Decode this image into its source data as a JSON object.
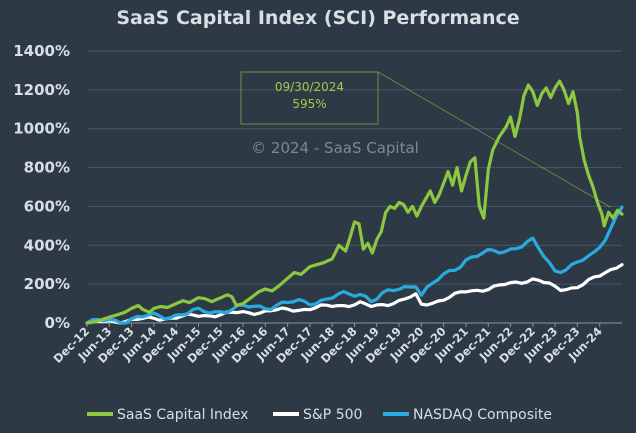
{
  "chart_data": {
    "type": "line",
    "title": "SaaS Capital Index (SCI) Performance",
    "xlabel": "",
    "ylabel": "",
    "ylim": [
      0,
      1400
    ],
    "yticks": [
      0,
      200,
      400,
      600,
      800,
      1000,
      1200,
      1400
    ],
    "ytick_labels": [
      "0%",
      "200%",
      "400%",
      "600%",
      "800%",
      "1000%",
      "1200%",
      "1400%"
    ],
    "x_tick_labels": [
      "Dec-12",
      "Jun-13",
      "Dec-13",
      "Jun-14",
      "Dec-14",
      "Jun-15",
      "Dec-15",
      "Jun-16",
      "Dec-16",
      "Jun-17",
      "Dec-17",
      "Jun-18",
      "Dec-18",
      "Jun-19",
      "Dec-19",
      "Jun-20",
      "Dec-20",
      "Jun-21",
      "Dec-21",
      "Jun-22",
      "Dec-22",
      "Jun-23",
      "Dec-23",
      "Jun-24"
    ],
    "x_range": [
      0,
      23.5
    ],
    "grid": true,
    "legend_position": "bottom",
    "watermark": "© 2024 - SaaS Capital",
    "annotation": {
      "date": "09/30/2024",
      "value": "595%",
      "point_x": 23.5,
      "point_y": 595
    },
    "series": [
      {
        "name": "SaaS Capital Index",
        "color": "#8dc63f",
        "points": [
          [
            0,
            0
          ],
          [
            0.3,
            5
          ],
          [
            0.6,
            15
          ],
          [
            1,
            30
          ],
          [
            1.3,
            40
          ],
          [
            1.7,
            55
          ],
          [
            2,
            75
          ],
          [
            2.3,
            90
          ],
          [
            2.5,
            70
          ],
          [
            2.8,
            55
          ],
          [
            3,
            75
          ],
          [
            3.3,
            85
          ],
          [
            3.6,
            80
          ],
          [
            4,
            100
          ],
          [
            4.3,
            115
          ],
          [
            4.6,
            105
          ],
          [
            5,
            130
          ],
          [
            5.3,
            125
          ],
          [
            5.6,
            110
          ],
          [
            6,
            130
          ],
          [
            6.3,
            145
          ],
          [
            6.5,
            135
          ],
          [
            6.7,
            90
          ],
          [
            7,
            100
          ],
          [
            7.3,
            125
          ],
          [
            7.7,
            160
          ],
          [
            8,
            175
          ],
          [
            8.3,
            165
          ],
          [
            8.6,
            190
          ],
          [
            9,
            230
          ],
          [
            9.3,
            260
          ],
          [
            9.6,
            250
          ],
          [
            10,
            290
          ],
          [
            10.3,
            300
          ],
          [
            10.6,
            310
          ],
          [
            11,
            330
          ],
          [
            11.3,
            400
          ],
          [
            11.6,
            370
          ],
          [
            11.8,
            440
          ],
          [
            12,
            520
          ],
          [
            12.2,
            510
          ],
          [
            12.4,
            380
          ],
          [
            12.6,
            410
          ],
          [
            12.8,
            360
          ],
          [
            13,
            430
          ],
          [
            13.2,
            470
          ],
          [
            13.4,
            570
          ],
          [
            13.6,
            600
          ],
          [
            13.8,
            590
          ],
          [
            14,
            620
          ],
          [
            14.2,
            610
          ],
          [
            14.4,
            570
          ],
          [
            14.6,
            600
          ],
          [
            14.8,
            550
          ],
          [
            15,
            600
          ],
          [
            15.2,
            640
          ],
          [
            15.4,
            680
          ],
          [
            15.6,
            620
          ],
          [
            15.8,
            660
          ],
          [
            16,
            720
          ],
          [
            16.2,
            780
          ],
          [
            16.4,
            710
          ],
          [
            16.6,
            800
          ],
          [
            16.8,
            680
          ],
          [
            17,
            760
          ],
          [
            17.2,
            830
          ],
          [
            17.4,
            850
          ],
          [
            17.6,
            600
          ],
          [
            17.8,
            540
          ],
          [
            18,
            790
          ],
          [
            18.2,
            890
          ],
          [
            18.5,
            960
          ],
          [
            18.8,
            1010
          ],
          [
            19,
            1060
          ],
          [
            19.2,
            960
          ],
          [
            19.4,
            1050
          ],
          [
            19.6,
            1170
          ],
          [
            19.8,
            1225
          ],
          [
            20,
            1190
          ],
          [
            20.2,
            1120
          ],
          [
            20.4,
            1180
          ],
          [
            20.6,
            1210
          ],
          [
            20.8,
            1160
          ],
          [
            21,
            1210
          ],
          [
            21.2,
            1245
          ],
          [
            21.4,
            1200
          ],
          [
            21.6,
            1130
          ],
          [
            21.8,
            1190
          ],
          [
            22,
            1080
          ],
          [
            22.1,
            960
          ],
          [
            22.3,
            840
          ],
          [
            22.5,
            760
          ],
          [
            22.7,
            700
          ],
          [
            22.9,
            620
          ],
          [
            23.1,
            560
          ],
          [
            23.2,
            500
          ],
          [
            23.4,
            570
          ],
          [
            23.6,
            540
          ],
          [
            23.8,
            580
          ],
          [
            24,
            560
          ]
        ]
      }
    ],
    "series_note": "points are [x_index, percent]; x index 0 = Dec-12, each tick = 6 months"
  },
  "legend": [
    {
      "label": "SaaS Capital Index",
      "color": "#8dc63f"
    },
    {
      "label": "S&P 500",
      "color": "#ffffff"
    },
    {
      "label": "NASDAQ Composite",
      "color": "#29abe2"
    }
  ]
}
